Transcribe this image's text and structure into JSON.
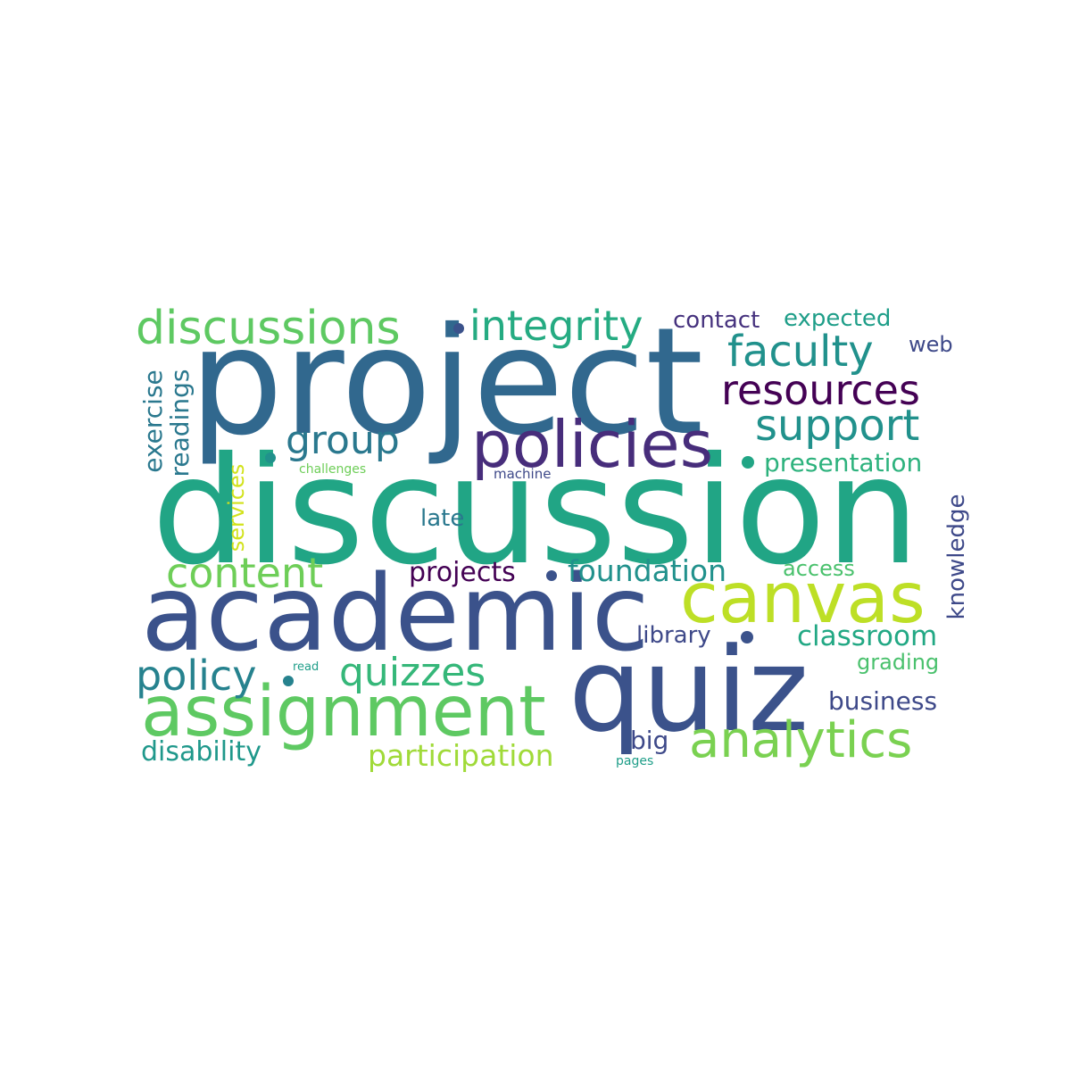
{
  "words": [
    {
      "text": "project",
      "color": "#31688e"
    },
    {
      "text": "discussion",
      "color": "#21a585"
    },
    {
      "text": "academic",
      "color": "#3b528b"
    },
    {
      "text": "quiz",
      "color": "#3b528b"
    },
    {
      "text": "canvas",
      "color": "#bddf26"
    },
    {
      "text": "assignment",
      "color": "#5ec962"
    },
    {
      "text": "policies",
      "color": "#472d7b"
    },
    {
      "text": "discussions",
      "color": "#5ec962"
    },
    {
      "text": "analytics",
      "color": "#7ad151"
    },
    {
      "text": "integrity",
      "color": "#25ab82"
    },
    {
      "text": "faculty",
      "color": "#21918c"
    },
    {
      "text": "resources",
      "color": "#440154"
    },
    {
      "text": "support",
      "color": "#21918c"
    },
    {
      "text": "group",
      "color": "#2a788e"
    },
    {
      "text": "content",
      "color": "#6ece58"
    },
    {
      "text": "policy",
      "color": "#26828e"
    },
    {
      "text": "quizzes",
      "color": "#35b779"
    },
    {
      "text": "foundation",
      "color": "#21918c"
    },
    {
      "text": "participation",
      "color": "#a0da39"
    },
    {
      "text": "disability",
      "color": "#1f988b"
    },
    {
      "text": "classroom",
      "color": "#22a884"
    },
    {
      "text": "presentation",
      "color": "#2db27d"
    },
    {
      "text": "projects",
      "color": "#440154"
    },
    {
      "text": "library",
      "color": "#3e4989"
    },
    {
      "text": "business",
      "color": "#3e4989"
    },
    {
      "text": "contact",
      "color": "#46327e"
    },
    {
      "text": "expected",
      "color": "#1f9e89"
    },
    {
      "text": "exercise",
      "color": "#2a788e"
    },
    {
      "text": "readings",
      "color": "#2a788e"
    },
    {
      "text": "services",
      "color": "#d2e21b"
    },
    {
      "text": "knowledge",
      "color": "#3e4989"
    },
    {
      "text": "late",
      "color": "#2a788e"
    },
    {
      "text": "access",
      "color": "#4ac16d"
    },
    {
      "text": "grading",
      "color": "#4ac16d"
    },
    {
      "text": "big",
      "color": "#3e4989"
    },
    {
      "text": "web",
      "color": "#3e4989"
    },
    {
      "text": "challenges",
      "color": "#6ece58"
    },
    {
      "text": "machine",
      "color": "#3e4989"
    },
    {
      "text": "read",
      "color": "#1f9e89"
    },
    {
      "text": "pages",
      "color": "#1f9e89"
    }
  ]
}
